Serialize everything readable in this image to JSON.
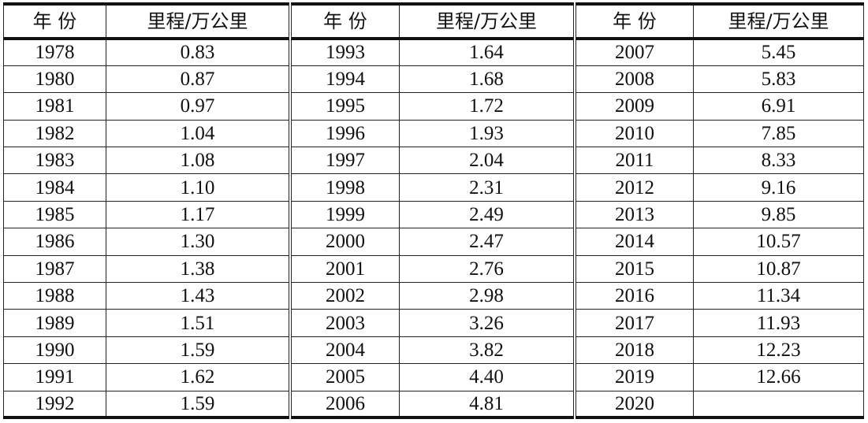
{
  "table": {
    "headers": [
      "年  份",
      "里程/万公里",
      "年  份",
      "里程/万公里",
      "年  份",
      "里程/万公里"
    ],
    "groups": [
      {
        "rows": [
          {
            "year": "1978",
            "value": "0.83"
          },
          {
            "year": "1980",
            "value": "0.87"
          },
          {
            "year": "1981",
            "value": "0.97"
          },
          {
            "year": "1982",
            "value": "1.04"
          },
          {
            "year": "1983",
            "value": "1.08"
          },
          {
            "year": "1984",
            "value": "1.10"
          },
          {
            "year": "1985",
            "value": "1.17"
          },
          {
            "year": "1986",
            "value": "1.30"
          },
          {
            "year": "1987",
            "value": "1.38"
          },
          {
            "year": "1988",
            "value": "1.43"
          },
          {
            "year": "1989",
            "value": "1.51"
          },
          {
            "year": "1990",
            "value": "1.59"
          },
          {
            "year": "1991",
            "value": "1.62"
          },
          {
            "year": "1992",
            "value": "1.59"
          }
        ]
      },
      {
        "rows": [
          {
            "year": "1993",
            "value": "1.64"
          },
          {
            "year": "1994",
            "value": "1.68"
          },
          {
            "year": "1995",
            "value": "1.72"
          },
          {
            "year": "1996",
            "value": "1.93"
          },
          {
            "year": "1997",
            "value": "2.04"
          },
          {
            "year": "1998",
            "value": "2.31"
          },
          {
            "year": "1999",
            "value": "2.49"
          },
          {
            "year": "2000",
            "value": "2.47"
          },
          {
            "year": "2001",
            "value": "2.76"
          },
          {
            "year": "2002",
            "value": "2.98"
          },
          {
            "year": "2003",
            "value": "3.26"
          },
          {
            "year": "2004",
            "value": "3.82"
          },
          {
            "year": "2005",
            "value": "4.40"
          },
          {
            "year": "2006",
            "value": "4.81"
          }
        ]
      },
      {
        "rows": [
          {
            "year": "2007",
            "value": "5.45"
          },
          {
            "year": "2008",
            "value": "5.83"
          },
          {
            "year": "2009",
            "value": "6.91"
          },
          {
            "year": "2010",
            "value": "7.85"
          },
          {
            "year": "2011",
            "value": "8.33"
          },
          {
            "year": "2012",
            "value": "9.16"
          },
          {
            "year": "2013",
            "value": "9.85"
          },
          {
            "year": "2014",
            "value": "10.57"
          },
          {
            "year": "2015",
            "value": "10.87"
          },
          {
            "year": "2016",
            "value": "11.34"
          },
          {
            "year": "2017",
            "value": "11.93"
          },
          {
            "year": "2018",
            "value": "12.23"
          },
          {
            "year": "2019",
            "value": "12.66"
          },
          {
            "year": "2020",
            "value": ""
          }
        ]
      }
    ]
  }
}
